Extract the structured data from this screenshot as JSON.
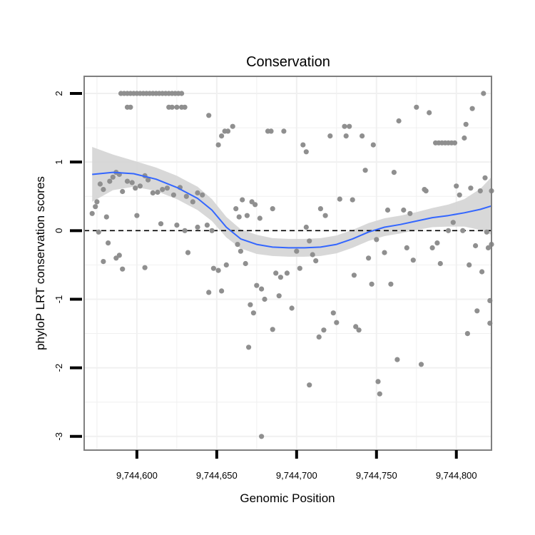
{
  "chart_data": {
    "type": "scatter",
    "title": "Conservation",
    "xlabel": "Genomic Position",
    "ylabel": "phyloP LRT conservation scores",
    "xlim": [
      9744567,
      9744822
    ],
    "ylim": [
      -3.2,
      2.25
    ],
    "grid": true,
    "legend": "none",
    "x_ticks": [
      {
        "value": 9744600,
        "label": "9,744,600"
      },
      {
        "value": 9744650,
        "label": "9,744,650"
      },
      {
        "value": 9744700,
        "label": "9,744,700"
      },
      {
        "value": 9744750,
        "label": "9,744,750"
      },
      {
        "value": 9744800,
        "label": "9,744,800"
      }
    ],
    "y_ticks": [
      {
        "value": 2,
        "label": "2"
      },
      {
        "value": 1,
        "label": "1"
      },
      {
        "value": 0,
        "label": "0"
      },
      {
        "value": -1,
        "label": "-1"
      },
      {
        "value": -2,
        "label": "-2"
      },
      {
        "value": -3,
        "label": "-3"
      }
    ],
    "reference_line": {
      "y": 0,
      "style": "dashed"
    },
    "points": [
      [
        9744590,
        2
      ],
      [
        9744592,
        2
      ],
      [
        9744594,
        2
      ],
      [
        9744596,
        2
      ],
      [
        9744598,
        2
      ],
      [
        9744600,
        2
      ],
      [
        9744602,
        2
      ],
      [
        9744604,
        2
      ],
      [
        9744606,
        2
      ],
      [
        9744608,
        2
      ],
      [
        9744610,
        2
      ],
      [
        9744612,
        2
      ],
      [
        9744614,
        2
      ],
      [
        9744616,
        2
      ],
      [
        9744618,
        2
      ],
      [
        9744620,
        2
      ],
      [
        9744622,
        2
      ],
      [
        9744624,
        2
      ],
      [
        9744626,
        2
      ],
      [
        9744628,
        2
      ],
      [
        9744594,
        1.8
      ],
      [
        9744596,
        1.8
      ],
      [
        9744620,
        1.8
      ],
      [
        9744622,
        1.8
      ],
      [
        9744625,
        1.8
      ],
      [
        9744628,
        1.8
      ],
      [
        9744630,
        1.8
      ],
      [
        9744572,
        0.25
      ],
      [
        9744574,
        0.35
      ],
      [
        9744575,
        0.42
      ],
      [
        9744577,
        0.68
      ],
      [
        9744579,
        0.6
      ],
      [
        9744581,
        0.2
      ],
      [
        9744583,
        0.72
      ],
      [
        9744585,
        0.78
      ],
      [
        9744587,
        0.85
      ],
      [
        9744589,
        0.82
      ],
      [
        9744591,
        0.57
      ],
      [
        9744594,
        0.72
      ],
      [
        9744597,
        0.7
      ],
      [
        9744599,
        0.62
      ],
      [
        9744602,
        0.65
      ],
      [
        9744605,
        0.8
      ],
      [
        9744607,
        0.74
      ],
      [
        9744610,
        0.55
      ],
      [
        9744613,
        0.56
      ],
      [
        9744616,
        0.6
      ],
      [
        9744619,
        0.62
      ],
      [
        9744623,
        0.52
      ],
      [
        9744627,
        0.63
      ],
      [
        9744631,
        0.5
      ],
      [
        9744635,
        0.42
      ],
      [
        9744638,
        0.55
      ],
      [
        9744641,
        0.52
      ],
      [
        9744644,
        0.08
      ],
      [
        9744647,
        0.0
      ],
      [
        9744576,
        -0.02
      ],
      [
        9744579,
        -0.45
      ],
      [
        9744582,
        -0.18
      ],
      [
        9744587,
        -0.4
      ],
      [
        9744589,
        -0.36
      ],
      [
        9744591,
        -0.56
      ],
      [
        9744600,
        0.22
      ],
      [
        9744605,
        -0.54
      ],
      [
        9744615,
        0.1
      ],
      [
        9744625,
        0.08
      ],
      [
        9744630,
        0.0
      ],
      [
        9744632,
        -0.32
      ],
      [
        9744638,
        0.05
      ],
      [
        9744645,
        -0.9
      ],
      [
        9744648,
        -0.55
      ],
      [
        9744651,
        -0.58
      ],
      [
        9744653,
        -0.88
      ],
      [
        9744656,
        -0.5
      ],
      [
        9744645,
        1.68
      ],
      [
        9744651,
        1.25
      ],
      [
        9744653,
        1.38
      ],
      [
        9744655,
        1.45
      ],
      [
        9744657,
        1.45
      ],
      [
        9744660,
        1.52
      ],
      [
        9744662,
        0.32
      ],
      [
        9744664,
        0.2
      ],
      [
        9744666,
        0.45
      ],
      [
        9744669,
        0.22
      ],
      [
        9744672,
        0.42
      ],
      [
        9744674,
        0.38
      ],
      [
        9744677,
        0.18
      ],
      [
        9744663,
        -0.2
      ],
      [
        9744665,
        -0.3
      ],
      [
        9744668,
        -0.48
      ],
      [
        9744671,
        -1.08
      ],
      [
        9744673,
        -1.2
      ],
      [
        9744675,
        -0.8
      ],
      [
        9744678,
        -0.85
      ],
      [
        9744680,
        -1.0
      ],
      [
        9744670,
        -1.7
      ],
      [
        9744678,
        -3.0
      ],
      [
        9744682,
        1.45
      ],
      [
        9744684,
        1.45
      ],
      [
        9744692,
        1.45
      ],
      [
        9744685,
        0.32
      ],
      [
        9744687,
        -0.62
      ],
      [
        9744689,
        -0.95
      ],
      [
        9744690,
        -0.68
      ],
      [
        9744694,
        -0.62
      ],
      [
        9744685,
        -1.44
      ],
      [
        9744697,
        -1.13
      ],
      [
        9744700,
        -0.3
      ],
      [
        9744702,
        -0.55
      ],
      [
        9744704,
        1.25
      ],
      [
        9744706,
        1.15
      ],
      [
        9744706,
        0.05
      ],
      [
        9744708,
        -0.15
      ],
      [
        9744710,
        -0.35
      ],
      [
        9744712,
        -0.44
      ],
      [
        9744708,
        -2.25
      ],
      [
        9744714,
        -1.55
      ],
      [
        9744715,
        0.32
      ],
      [
        9744717,
        -1.45
      ],
      [
        9744718,
        0.22
      ],
      [
        9744721,
        1.38
      ],
      [
        9744723,
        -1.2
      ],
      [
        9744725,
        -1.34
      ],
      [
        9744727,
        0.46
      ],
      [
        9744730,
        1.52
      ],
      [
        9744733,
        1.52
      ],
      [
        9744731,
        1.38
      ],
      [
        9744735,
        0.45
      ],
      [
        9744736,
        -0.65
      ],
      [
        9744737,
        -1.4
      ],
      [
        9744739,
        -1.45
      ],
      [
        9744741,
        1.38
      ],
      [
        9744743,
        0.88
      ],
      [
        9744745,
        -0.4
      ],
      [
        9744747,
        -0.78
      ],
      [
        9744748,
        1.25
      ],
      [
        9744750,
        -0.13
      ],
      [
        9744751,
        -2.2
      ],
      [
        9744752,
        -2.38
      ],
      [
        9744755,
        -0.32
      ],
      [
        9744757,
        0.3
      ],
      [
        9744759,
        -0.78
      ],
      [
        9744761,
        0.85
      ],
      [
        9744763,
        -1.88
      ],
      [
        9744764,
        1.6
      ],
      [
        9744767,
        0.3
      ],
      [
        9744769,
        -0.25
      ],
      [
        9744771,
        0.25
      ],
      [
        9744773,
        -0.43
      ],
      [
        9744775,
        1.8
      ],
      [
        9744778,
        -1.95
      ],
      [
        9744780,
        0.6
      ],
      [
        9744781,
        0.58
      ],
      [
        9744783,
        1.72
      ],
      [
        9744785,
        -0.25
      ],
      [
        9744787,
        1.28
      ],
      [
        9744789,
        1.28
      ],
      [
        9744791,
        1.28
      ],
      [
        9744793,
        1.28
      ],
      [
        9744795,
        1.28
      ],
      [
        9744797,
        1.28
      ],
      [
        9744799,
        1.28
      ],
      [
        9744788,
        -0.18
      ],
      [
        9744790,
        -0.48
      ],
      [
        9744795,
        0.0
      ],
      [
        9744798,
        0.12
      ],
      [
        9744800,
        0.65
      ],
      [
        9744802,
        0.52
      ],
      [
        9744804,
        0.0
      ],
      [
        9744805,
        1.35
      ],
      [
        9744806,
        1.55
      ],
      [
        9744807,
        -1.5
      ],
      [
        9744808,
        -0.5
      ],
      [
        9744809,
        0.62
      ],
      [
        9744810,
        1.78
      ],
      [
        9744812,
        -0.22
      ],
      [
        9744813,
        -1.17
      ],
      [
        9744815,
        0.58
      ],
      [
        9744816,
        -0.6
      ],
      [
        9744817,
        2.0
      ],
      [
        9744818,
        0.77
      ],
      [
        9744819,
        -0.02
      ],
      [
        9744820,
        -0.25
      ],
      [
        9744821,
        -1.35
      ],
      [
        9744822,
        0.58
      ],
      [
        9744822,
        -0.2
      ],
      [
        9744821,
        -1.02
      ]
    ],
    "smooth": {
      "x": [
        9744572,
        9744585,
        9744598,
        9744612,
        9744625,
        9744638,
        9744647,
        9744656,
        9744665,
        9744675,
        9744685,
        9744695,
        9744705,
        9744715,
        9744725,
        9744735,
        9744745,
        9744755,
        9744765,
        9744775,
        9744785,
        9744795,
        9744805,
        9744815,
        9744822
      ],
      "y": [
        0.82,
        0.85,
        0.83,
        0.75,
        0.63,
        0.47,
        0.3,
        0.05,
        -0.12,
        -0.2,
        -0.24,
        -0.25,
        -0.25,
        -0.24,
        -0.2,
        -0.12,
        -0.02,
        0.05,
        0.09,
        0.14,
        0.19,
        0.22,
        0.26,
        0.31,
        0.36
      ],
      "ci_half": [
        0.4,
        0.26,
        0.19,
        0.17,
        0.17,
        0.17,
        0.16,
        0.15,
        0.14,
        0.14,
        0.13,
        0.13,
        0.13,
        0.13,
        0.13,
        0.13,
        0.13,
        0.13,
        0.13,
        0.13,
        0.14,
        0.16,
        0.2,
        0.3,
        0.42
      ]
    },
    "colors": {
      "points": "#8f8f8f",
      "smooth_line": "#3366ff",
      "ci_band": "#d4d4d4",
      "grid": "#f0f0f0",
      "panel_border": "#7f7f7f",
      "reference_line": "#000000"
    }
  }
}
